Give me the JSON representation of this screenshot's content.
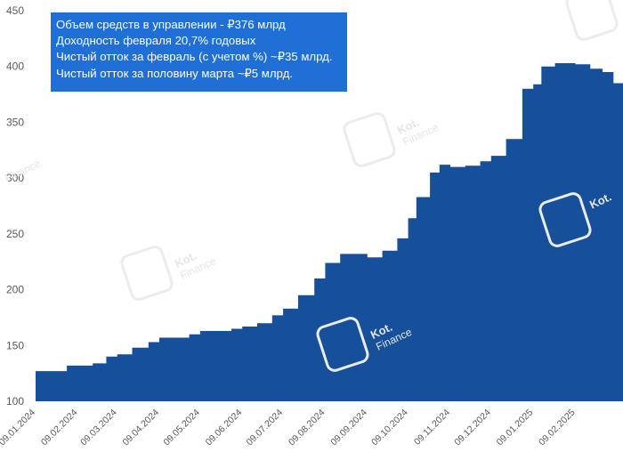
{
  "annotation": {
    "lines": [
      "Объем средств в управлении - ₽376 млрд",
      "Доходность февраля 20,7% годовых",
      "Чистый отток за февраль (с учетом %) ~₽35 млрд.",
      "Чистый отток за половину марта ~₽5 млрд."
    ],
    "background_color": "#1f6fd6"
  },
  "watermark": {
    "line1": "Kot.",
    "line2": "Finance"
  },
  "colors": {
    "area": "#164f9a"
  },
  "chart_data": {
    "type": "area",
    "title": "",
    "xlabel": "",
    "ylabel": "",
    "ylim": [
      100,
      450
    ],
    "y_ticks": [
      100,
      150,
      200,
      250,
      300,
      350,
      400,
      450
    ],
    "x_ticks": [
      "09.01.2024",
      "09.02.2024",
      "09.03.2024",
      "09.04.2024",
      "09.05.2024",
      "09.06.2024",
      "09.07.2024",
      "09.08.2024",
      "09.09.2024",
      "09.10.2024",
      "09.11.2024",
      "09.12.2024",
      "09.01.2025",
      "09.02.2025"
    ],
    "x_range": [
      "09.01.2024",
      "16.03.2025"
    ],
    "grid": false,
    "series": [
      {
        "x": [
          "09.01.2024",
          "20.01.2024",
          "01.02.2024",
          "09.02.2024",
          "20.02.2024",
          "01.03.2024",
          "09.03.2024",
          "20.03.2024",
          "01.04.2024",
          "09.04.2024",
          "20.04.2024",
          "01.05.2024",
          "09.05.2024",
          "20.05.2024",
          "01.06.2024",
          "09.06.2024",
          "20.06.2024",
          "01.07.2024",
          "09.07.2024",
          "20.07.2024",
          "01.08.2024",
          "09.08.2024",
          "20.08.2024",
          "01.09.2024",
          "09.09.2024",
          "20.09.2024",
          "01.10.2024",
          "09.10.2024",
          "15.10.2024",
          "25.10.2024",
          "01.11.2024",
          "09.11.2024",
          "20.11.2024",
          "01.12.2024",
          "09.12.2024",
          "20.12.2024",
          "01.01.2025",
          "09.01.2025",
          "15.01.2025",
          "25.01.2025",
          "01.02.2025",
          "09.02.2025",
          "20.02.2025",
          "01.03.2025",
          "09.03.2025",
          "16.03.2025"
        ],
        "y": [
          127,
          127,
          132,
          132,
          134,
          140,
          142,
          148,
          153,
          157,
          157,
          160,
          163,
          163,
          165,
          167,
          170,
          177,
          183,
          195,
          210,
          224,
          232,
          232,
          229,
          235,
          246,
          264,
          283,
          305,
          312,
          310,
          311,
          315,
          320,
          335,
          380,
          384,
          400,
          403,
          403,
          402,
          398,
          395,
          385,
          376
        ]
      }
    ]
  }
}
